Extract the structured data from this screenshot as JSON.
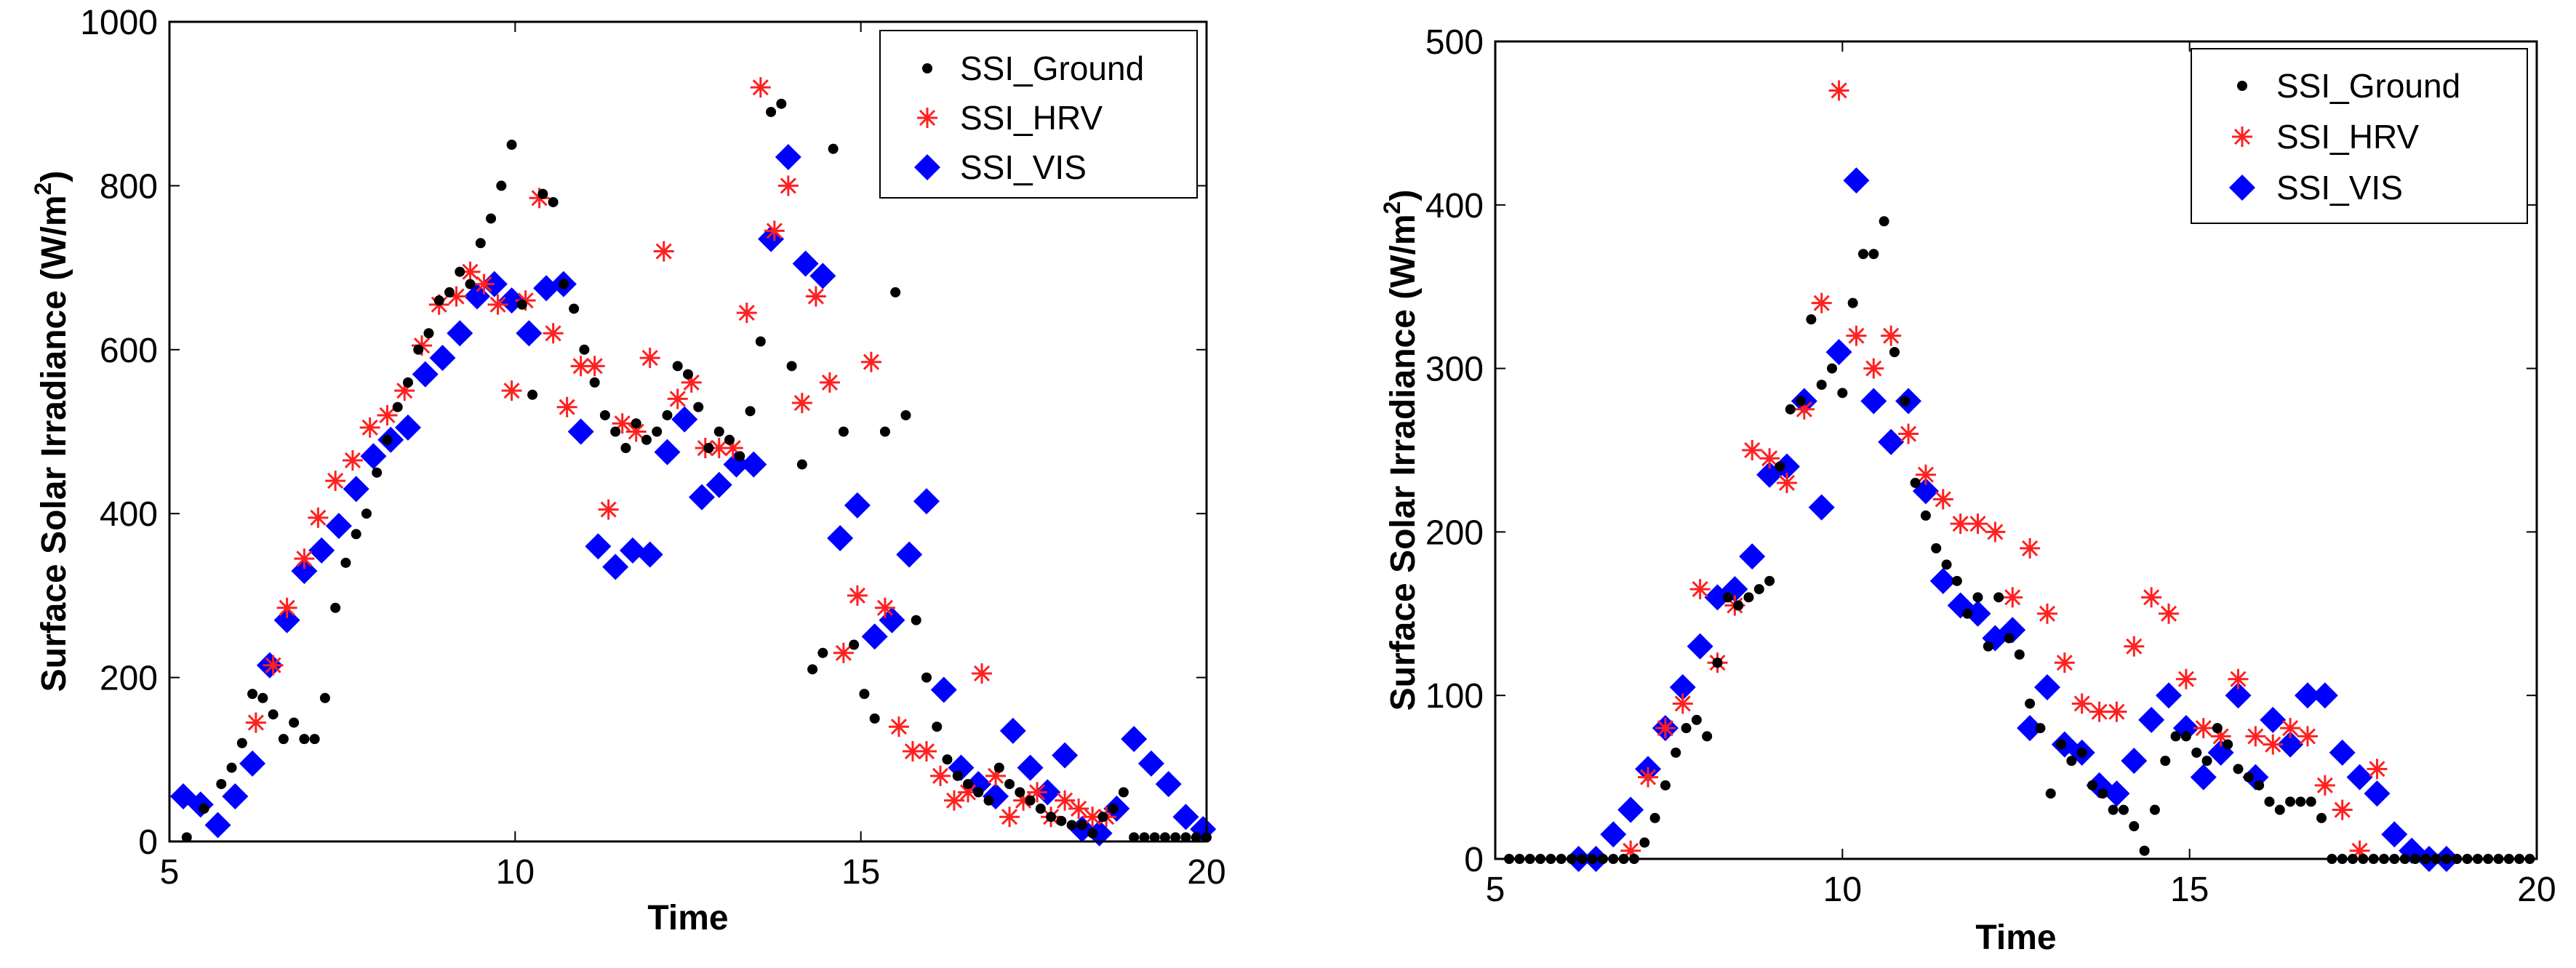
{
  "chart_data": [
    {
      "type": "scatter",
      "title": "",
      "xlabel": "Time",
      "ylabel": "Surface Solar Irradiance (W/m^2)",
      "ylabel_text": "Surface Solar Irradiance  (W/m",
      "ylabel_sup": "2",
      "ylabel_close": ")",
      "xlim": [
        5,
        20
      ],
      "ylim": [
        0,
        1000
      ],
      "xticks": [
        5,
        10,
        15,
        20
      ],
      "yticks": [
        0,
        200,
        400,
        600,
        800,
        1000
      ],
      "legend": "top-right",
      "series": [
        {
          "name": "SSI_Ground",
          "marker": "dot",
          "color": "#000000",
          "x": [
            5.25,
            5.5,
            5.75,
            5.9,
            6.05,
            6.2,
            6.35,
            6.5,
            6.65,
            6.8,
            6.95,
            7.1,
            7.25,
            7.4,
            7.55,
            7.7,
            7.85,
            8.0,
            8.15,
            8.3,
            8.45,
            8.6,
            8.75,
            8.9,
            9.05,
            9.2,
            9.35,
            9.5,
            9.65,
            9.8,
            9.95,
            10.1,
            10.25,
            10.4,
            10.55,
            10.7,
            10.85,
            11.0,
            11.15,
            11.3,
            11.45,
            11.6,
            11.75,
            11.9,
            12.05,
            12.2,
            12.35,
            12.5,
            12.65,
            12.8,
            12.95,
            13.1,
            13.25,
            13.4,
            13.55,
            13.7,
            13.85,
            14.0,
            14.15,
            14.3,
            14.45,
            14.6,
            14.75,
            14.9,
            15.05,
            15.2,
            15.35,
            15.5,
            15.65,
            15.8,
            15.95,
            16.1,
            16.25,
            16.4,
            16.55,
            16.7,
            16.85,
            17.0,
            17.15,
            17.3,
            17.45,
            17.6,
            17.75,
            17.9,
            18.05,
            18.2,
            18.35,
            18.5,
            18.65,
            18.8,
            18.95,
            19.1,
            19.25,
            19.4,
            19.55,
            19.7,
            19.85,
            20.0
          ],
          "y": [
            5,
            40,
            70,
            90,
            120,
            180,
            175,
            155,
            125,
            145,
            125,
            125,
            175,
            285,
            340,
            375,
            400,
            450,
            490,
            530,
            560,
            600,
            620,
            660,
            670,
            695,
            680,
            730,
            760,
            800,
            850,
            655,
            545,
            790,
            780,
            680,
            650,
            600,
            560,
            520,
            500,
            480,
            510,
            490,
            500,
            520,
            580,
            570,
            530,
            480,
            500,
            490,
            470,
            525,
            610,
            890,
            900,
            580,
            460,
            210,
            230,
            845,
            500,
            240,
            180,
            150,
            500,
            670,
            520,
            270,
            200,
            140,
            100,
            80,
            70,
            60,
            50,
            90,
            70,
            60,
            50,
            40,
            30,
            25,
            20,
            20,
            10,
            30,
            40,
            60,
            5,
            5,
            5,
            5,
            5,
            5,
            5,
            5
          ]
        },
        {
          "name": "SSI_HRV",
          "marker": "asterisk",
          "color": "#ff0000",
          "x": [
            6.25,
            6.5,
            6.7,
            6.95,
            7.15,
            7.4,
            7.65,
            7.9,
            8.15,
            8.4,
            8.65,
            8.9,
            9.15,
            9.35,
            9.55,
            9.75,
            9.95,
            10.15,
            10.35,
            10.55,
            10.75,
            10.95,
            11.15,
            11.35,
            11.55,
            11.75,
            11.95,
            12.15,
            12.35,
            12.55,
            12.75,
            12.95,
            13.15,
            13.35,
            13.55,
            13.75,
            13.95,
            14.15,
            14.35,
            14.55,
            14.75,
            14.95,
            15.15,
            15.35,
            15.55,
            15.75,
            15.95,
            16.15,
            16.35,
            16.55,
            16.75,
            16.95,
            17.15,
            17.35,
            17.55,
            17.75,
            17.95,
            18.15,
            18.35,
            18.55
          ],
          "y": [
            145,
            215,
            285,
            345,
            395,
            440,
            465,
            505,
            520,
            550,
            605,
            655,
            665,
            695,
            680,
            655,
            550,
            660,
            785,
            620,
            530,
            580,
            580,
            405,
            510,
            500,
            590,
            720,
            540,
            560,
            480,
            480,
            480,
            645,
            920,
            745,
            800,
            535,
            665,
            560,
            230,
            300,
            585,
            285,
            140,
            110,
            110,
            80,
            50,
            60,
            205,
            80,
            30,
            50,
            60,
            30,
            50,
            40,
            30,
            30
          ]
        },
        {
          "name": "SSI_VIS",
          "marker": "diamond",
          "color": "#0000ff",
          "x": [
            5.2,
            5.45,
            5.7,
            5.95,
            6.2,
            6.45,
            6.7,
            6.95,
            7.2,
            7.45,
            7.7,
            7.95,
            8.2,
            8.45,
            8.7,
            8.95,
            9.2,
            9.45,
            9.7,
            9.95,
            10.2,
            10.45,
            10.7,
            10.95,
            11.2,
            11.45,
            11.7,
            11.95,
            12.2,
            12.45,
            12.7,
            12.95,
            13.2,
            13.45,
            13.7,
            13.95,
            14.2,
            14.45,
            14.7,
            14.95,
            15.2,
            15.45,
            15.7,
            15.95,
            16.2,
            16.45,
            16.7,
            16.95,
            17.2,
            17.45,
            17.7,
            17.95,
            18.2,
            18.45,
            18.7,
            18.95,
            19.2,
            19.45,
            19.7,
            19.95
          ],
          "y": [
            55,
            45,
            20,
            55,
            95,
            215,
            270,
            330,
            355,
            385,
            430,
            470,
            490,
            505,
            570,
            590,
            620,
            665,
            680,
            660,
            620,
            675,
            680,
            500,
            360,
            335,
            355,
            350,
            475,
            515,
            420,
            435,
            460,
            460,
            735,
            835,
            705,
            690,
            370,
            410,
            250,
            270,
            350,
            415,
            185,
            90,
            70,
            55,
            135,
            90,
            60,
            105,
            15,
            10,
            40,
            125,
            95,
            70,
            30,
            15
          ]
        }
      ]
    },
    {
      "type": "scatter",
      "title": "",
      "xlabel": "Time",
      "ylabel": "Surface Solar Irradiance (W/m^2)",
      "ylabel_text": "Surface Solar Irradiance  (W/m",
      "ylabel_sup": "2",
      "ylabel_close": ")",
      "xlim": [
        5,
        20
      ],
      "ylim": [
        0,
        500
      ],
      "xticks": [
        5,
        10,
        15,
        20
      ],
      "yticks": [
        0,
        100,
        200,
        300,
        400,
        500
      ],
      "legend": "top-right",
      "series": [
        {
          "name": "SSI_Ground",
          "marker": "dot",
          "color": "#000000",
          "x": [
            5.2,
            5.35,
            5.5,
            5.65,
            5.8,
            5.95,
            6.1,
            6.25,
            6.4,
            6.55,
            6.7,
            6.85,
            7.0,
            7.15,
            7.3,
            7.45,
            7.6,
            7.75,
            7.9,
            8.05,
            8.2,
            8.35,
            8.5,
            8.65,
            8.8,
            8.95,
            9.1,
            9.25,
            9.4,
            9.55,
            9.7,
            9.85,
            10.0,
            10.15,
            10.3,
            10.45,
            10.6,
            10.75,
            10.9,
            11.05,
            11.2,
            11.35,
            11.5,
            11.65,
            11.8,
            11.95,
            12.1,
            12.25,
            12.4,
            12.55,
            12.7,
            12.85,
            13.0,
            13.15,
            13.3,
            13.45,
            13.6,
            13.75,
            13.9,
            14.05,
            14.2,
            14.35,
            14.5,
            14.65,
            14.8,
            14.95,
            15.1,
            15.25,
            15.4,
            15.55,
            15.7,
            15.85,
            16.0,
            16.15,
            16.3,
            16.45,
            16.6,
            16.75,
            16.9,
            17.05,
            17.2,
            17.35,
            17.5,
            17.65,
            17.8,
            17.95,
            18.1,
            18.25,
            18.4,
            18.55,
            18.7,
            18.85,
            19.0,
            19.15,
            19.3,
            19.45,
            19.6,
            19.75,
            19.9
          ],
          "y": [
            0,
            0,
            0,
            0,
            0,
            0,
            0,
            0,
            0,
            0,
            0,
            0,
            0,
            10,
            25,
            45,
            65,
            80,
            85,
            75,
            120,
            160,
            155,
            160,
            165,
            170,
            240,
            275,
            280,
            330,
            290,
            300,
            285,
            340,
            370,
            370,
            390,
            310,
            280,
            230,
            210,
            190,
            180,
            170,
            150,
            160,
            130,
            160,
            135,
            125,
            95,
            80,
            40,
            70,
            60,
            65,
            45,
            40,
            30,
            30,
            20,
            5,
            30,
            60,
            75,
            75,
            65,
            60,
            80,
            70,
            55,
            50,
            45,
            35,
            30,
            35,
            35,
            35,
            25,
            0,
            0,
            0,
            0,
            0,
            0,
            0,
            0,
            0,
            0,
            0,
            0,
            0,
            0,
            0,
            0,
            0,
            0,
            0,
            0
          ]
        },
        {
          "name": "SSI_HRV",
          "marker": "asterisk",
          "color": "#ff0000",
          "x": [
            6.95,
            7.2,
            7.45,
            7.7,
            7.95,
            8.2,
            8.45,
            8.7,
            8.95,
            9.2,
            9.45,
            9.7,
            9.95,
            10.2,
            10.45,
            10.7,
            10.95,
            11.2,
            11.45,
            11.7,
            11.95,
            12.2,
            12.45,
            12.7,
            12.95,
            13.2,
            13.45,
            13.7,
            13.95,
            14.2,
            14.45,
            14.7,
            14.95,
            15.2,
            15.45,
            15.7,
            15.95,
            16.2,
            16.45,
            16.7,
            16.95,
            17.2,
            17.45,
            17.7
          ],
          "y": [
            5,
            50,
            80,
            95,
            165,
            120,
            155,
            250,
            245,
            230,
            275,
            340,
            470,
            320,
            300,
            320,
            260,
            235,
            220,
            205,
            205,
            200,
            160,
            190,
            150,
            120,
            95,
            90,
            90,
            130,
            160,
            150,
            110,
            80,
            75,
            110,
            75,
            70,
            80,
            75,
            45,
            30,
            5,
            55
          ]
        },
        {
          "name": "SSI_VIS",
          "marker": "diamond",
          "color": "#0000ff",
          "x": [
            6.2,
            6.45,
            6.7,
            6.95,
            7.2,
            7.45,
            7.7,
            7.95,
            8.2,
            8.45,
            8.7,
            8.95,
            9.2,
            9.45,
            9.7,
            9.95,
            10.2,
            10.45,
            10.7,
            10.95,
            11.2,
            11.45,
            11.7,
            11.95,
            12.2,
            12.45,
            12.7,
            12.95,
            13.2,
            13.45,
            13.7,
            13.95,
            14.2,
            14.45,
            14.7,
            14.95,
            15.2,
            15.45,
            15.7,
            15.95,
            16.2,
            16.45,
            16.7,
            16.95,
            17.2,
            17.45,
            17.7,
            17.95,
            18.2,
            18.45,
            18.7
          ],
          "y": [
            0,
            0,
            15,
            30,
            55,
            80,
            105,
            130,
            160,
            165,
            185,
            235,
            240,
            280,
            215,
            310,
            415,
            280,
            255,
            280,
            225,
            170,
            155,
            150,
            135,
            140,
            80,
            105,
            70,
            65,
            45,
            40,
            60,
            85,
            100,
            80,
            50,
            65,
            100,
            50,
            85,
            70,
            100,
            100,
            65,
            50,
            40,
            15,
            5,
            0,
            0
          ]
        }
      ]
    }
  ]
}
